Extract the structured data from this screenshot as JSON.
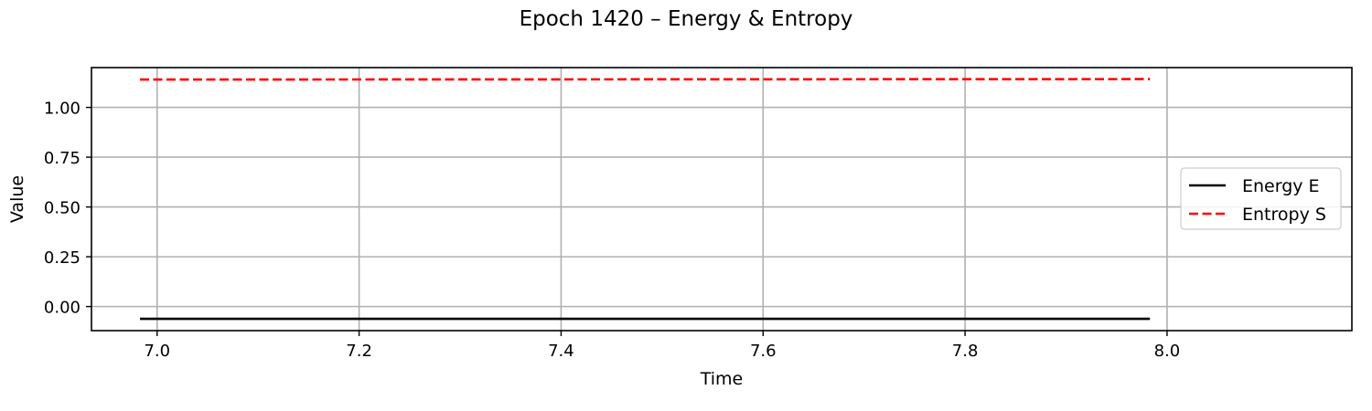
{
  "chart_data": {
    "type": "line",
    "title": "Epoch 1420 – Energy & Entropy",
    "xlabel": "Time",
    "ylabel": "Value",
    "xlim": [
      6.935,
      8.183
    ],
    "ylim": [
      -0.121,
      1.2
    ],
    "xticks": [
      7.0,
      7.2,
      7.4,
      7.6,
      7.8,
      8.0
    ],
    "xtick_labels": [
      "7.0",
      "7.2",
      "7.4",
      "7.6",
      "7.8",
      "8.0"
    ],
    "yticks": [
      -0.0,
      0.25,
      0.5,
      0.75,
      1.0
    ],
    "ytick_labels": [
      "0.00",
      "0.25",
      "0.50",
      "0.75",
      "1.00"
    ],
    "grid": true,
    "legend_position": "center-right",
    "series": [
      {
        "name": "Energy E",
        "x": [
          6.983,
          7.983
        ],
        "y": [
          -0.062,
          -0.062
        ],
        "color": "#000000",
        "dash": "solid"
      },
      {
        "name": "Entropy S",
        "x": [
          6.983,
          7.983
        ],
        "y": [
          1.14,
          1.142
        ],
        "color": "#ff0000",
        "dash": "dashed"
      }
    ]
  }
}
